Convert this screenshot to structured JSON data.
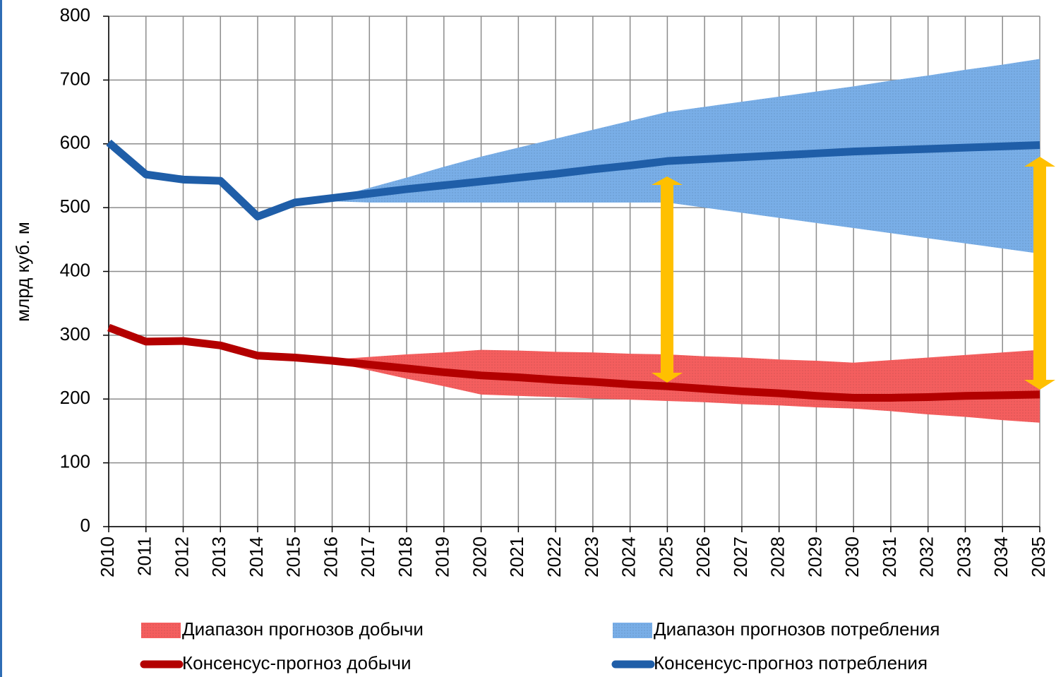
{
  "chart_data": {
    "type": "line",
    "y_label": "млрд куб. м",
    "x": [
      2010,
      2011,
      2012,
      2013,
      2014,
      2015,
      2016,
      2017,
      2018,
      2019,
      2020,
      2021,
      2022,
      2023,
      2024,
      2025,
      2026,
      2027,
      2028,
      2029,
      2030,
      2031,
      2032,
      2033,
      2034,
      2035
    ],
    "xlim": [
      2010,
      2035
    ],
    "xticks": [
      2010,
      2011,
      2012,
      2013,
      2014,
      2015,
      2016,
      2017,
      2018,
      2019,
      2020,
      2021,
      2022,
      2023,
      2024,
      2025,
      2026,
      2027,
      2028,
      2029,
      2030,
      2031,
      2032,
      2033,
      2034,
      2035
    ],
    "ylim": [
      0,
      800
    ],
    "yticks": [
      0,
      100,
      200,
      300,
      400,
      500,
      600,
      700,
      800
    ],
    "grid": true,
    "bands": [
      {
        "name": "Диапазон прогнозов добычи",
        "color": "#f23b3b",
        "lower": [
          null,
          null,
          null,
          null,
          null,
          null,
          258,
          245,
          232,
          220,
          207,
          205,
          203,
          201,
          199,
          197,
          195,
          192,
          190,
          187,
          185,
          181,
          176,
          172,
          167,
          163
        ],
        "upper": [
          null,
          null,
          null,
          null,
          null,
          null,
          262,
          266,
          270,
          273,
          277,
          276,
          274,
          273,
          271,
          270,
          267,
          265,
          262,
          260,
          257,
          261,
          265,
          269,
          273,
          277
        ]
      },
      {
        "name": "Диапазон прогнозов потребления",
        "color": "#5b9ce2",
        "lower": [
          null,
          null,
          null,
          null,
          null,
          null,
          510,
          508,
          508,
          508,
          508,
          508,
          508,
          508,
          508,
          508,
          500,
          492,
          484,
          476,
          468,
          460,
          452,
          444,
          436,
          428
        ],
        "upper": [
          null,
          null,
          null,
          null,
          null,
          null,
          515,
          531,
          547,
          564,
          580,
          594,
          608,
          622,
          636,
          650,
          658,
          666,
          674,
          682,
          690,
          699,
          707,
          716,
          724,
          733
        ]
      }
    ],
    "series": [
      {
        "name": "Консенсус-прогноз добычи",
        "color": "#b30000",
        "values": [
          312,
          290,
          291,
          284,
          268,
          265,
          260,
          254,
          248,
          242,
          237,
          234,
          230,
          227,
          223,
          220,
          216,
          212,
          209,
          205,
          202,
          202,
          203,
          205,
          206,
          207
        ]
      },
      {
        "name": "Консенсус-прогноз потребления",
        "color": "#1f5ea8",
        "values": [
          602,
          552,
          544,
          542,
          486,
          508,
          515,
          522,
          529,
          535,
          541,
          547,
          553,
          560,
          566,
          573,
          576,
          579,
          582,
          585,
          588,
          590,
          592,
          594,
          596,
          598
        ]
      }
    ]
  }
}
